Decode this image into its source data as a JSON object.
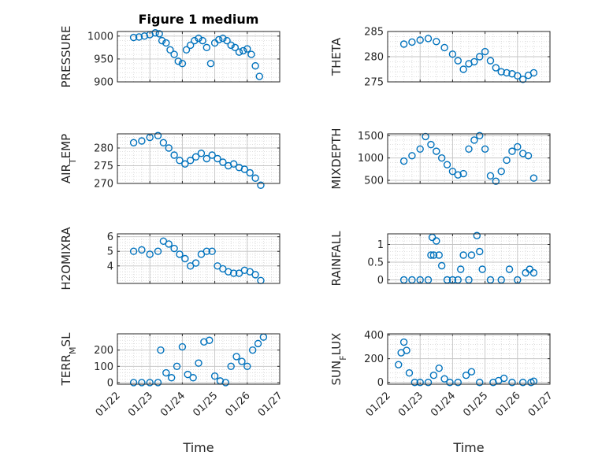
{
  "figure": {
    "title": "Figure 1 medium",
    "xlabel": "Time",
    "date_tick_labels": [
      "01/22",
      "01/23",
      "01/24",
      "01/25",
      "01/26",
      "01/27"
    ],
    "marker_color": "#0072BD"
  },
  "chart_data": [
    {
      "type": "scatter",
      "ylabel": "PRESSURE",
      "ylim": [
        900,
        1010
      ],
      "yticks": [
        900,
        950,
        1000
      ],
      "xlim": [
        "01/22",
        "01/27"
      ],
      "grid": true,
      "x": [
        "01/22 12:00",
        "01/22 16:00",
        "01/22 20:00",
        "01/23 00:00",
        "01/23 04:00",
        "01/23 07:00",
        "01/23 09:00",
        "01/23 12:00",
        "01/23 15:00",
        "01/23 18:00",
        "01/23 21:00",
        "01/24 00:00",
        "01/24 03:00",
        "01/24 06:00",
        "01/24 09:00",
        "01/24 12:00",
        "01/24 15:00",
        "01/24 18:00",
        "01/24 21:00",
        "01/25 00:00",
        "01/25 03:00",
        "01/25 06:00",
        "01/25 09:00",
        "01/25 12:00",
        "01/25 15:00",
        "01/25 18:00",
        "01/25 21:00",
        "01/26 00:00",
        "01/26 03:00",
        "01/26 06:00",
        "01/26 09:00"
      ],
      "values": [
        997,
        998,
        1000,
        1003,
        1007,
        1005,
        990,
        985,
        970,
        960,
        945,
        940,
        970,
        980,
        990,
        995,
        990,
        975,
        940,
        985,
        992,
        995,
        990,
        980,
        975,
        965,
        968,
        972,
        960,
        935,
        912
      ]
    },
    {
      "type": "scatter",
      "ylabel": "THETA",
      "ylim": [
        275,
        285
      ],
      "yticks": [
        275,
        280,
        285
      ],
      "xlim": [
        "01/22",
        "01/27"
      ],
      "grid": true,
      "x": [
        "01/22 12:00",
        "01/22 18:00",
        "01/23 00:00",
        "01/23 06:00",
        "01/23 12:00",
        "01/23 18:00",
        "01/24 00:00",
        "01/24 04:00",
        "01/24 08:00",
        "01/24 12:00",
        "01/24 16:00",
        "01/24 20:00",
        "01/25 00:00",
        "01/25 04:00",
        "01/25 08:00",
        "01/25 12:00",
        "01/25 16:00",
        "01/25 20:00",
        "01/26 00:00",
        "01/26 04:00",
        "01/26 08:00",
        "01/26 12:00"
      ],
      "values": [
        282.5,
        282.9,
        283.3,
        283.6,
        283.0,
        281.8,
        280.5,
        279.2,
        277.5,
        278.6,
        279.0,
        280.0,
        281.0,
        279.2,
        277.8,
        277.0,
        276.8,
        276.6,
        276.2,
        275.5,
        276.3,
        276.8
      ]
    },
    {
      "type": "scatter",
      "ylabel": "AIR_TEMP",
      "ylim": [
        270,
        284
      ],
      "yticks": [
        270,
        275,
        280
      ],
      "xlim": [
        "01/22",
        "01/27"
      ],
      "grid": true,
      "x": [
        "01/22 12:00",
        "01/22 18:00",
        "01/23 00:00",
        "01/23 06:00",
        "01/23 10:00",
        "01/23 14:00",
        "01/23 18:00",
        "01/23 22:00",
        "01/24 02:00",
        "01/24 06:00",
        "01/24 10:00",
        "01/24 14:00",
        "01/24 18:00",
        "01/24 22:00",
        "01/25 02:00",
        "01/25 06:00",
        "01/25 10:00",
        "01/25 14:00",
        "01/25 18:00",
        "01/25 22:00",
        "01/26 02:00",
        "01/26 06:00",
        "01/26 10:00"
      ],
      "values": [
        281.5,
        282.0,
        283.0,
        283.5,
        281.5,
        280.0,
        278.0,
        276.5,
        275.5,
        276.5,
        277.5,
        278.5,
        277.0,
        278.0,
        277.0,
        276.0,
        275.0,
        275.5,
        274.5,
        274.0,
        273.0,
        271.5,
        269.5
      ]
    },
    {
      "type": "scatter",
      "ylabel": "MIXDEPTH",
      "ylim": [
        430,
        1540
      ],
      "yticks": [
        500,
        1000,
        1500
      ],
      "xlim": [
        "01/22",
        "01/27"
      ],
      "grid": true,
      "x": [
        "01/22 12:00",
        "01/22 18:00",
        "01/23 00:00",
        "01/23 04:00",
        "01/23 08:00",
        "01/23 12:00",
        "01/23 16:00",
        "01/23 20:00",
        "01/24 00:00",
        "01/24 04:00",
        "01/24 08:00",
        "01/24 12:00",
        "01/24 16:00",
        "01/24 20:00",
        "01/25 00:00",
        "01/25 04:00",
        "01/25 08:00",
        "01/25 12:00",
        "01/25 16:00",
        "01/25 20:00",
        "01/26 00:00",
        "01/26 04:00",
        "01/26 08:00",
        "01/26 12:00"
      ],
      "values": [
        930,
        1050,
        1200,
        1480,
        1300,
        1150,
        1000,
        850,
        700,
        620,
        650,
        1200,
        1400,
        1500,
        1200,
        600,
        480,
        700,
        950,
        1150,
        1250,
        1100,
        1050,
        550
      ]
    },
    {
      "type": "scatter",
      "ylabel": "H2OMIXRA",
      "ylim": [
        2.8,
        6.2
      ],
      "yticks": [
        4,
        5,
        6
      ],
      "xlim": [
        "01/22",
        "01/27"
      ],
      "grid": true,
      "x": [
        "01/22 12:00",
        "01/22 18:00",
        "01/23 00:00",
        "01/23 06:00",
        "01/23 10:00",
        "01/23 14:00",
        "01/23 18:00",
        "01/23 22:00",
        "01/24 02:00",
        "01/24 06:00",
        "01/24 10:00",
        "01/24 14:00",
        "01/24 18:00",
        "01/24 22:00",
        "01/25 02:00",
        "01/25 06:00",
        "01/25 10:00",
        "01/25 14:00",
        "01/25 18:00",
        "01/25 22:00",
        "01/26 02:00",
        "01/26 06:00",
        "01/26 10:00"
      ],
      "values": [
        5.0,
        5.1,
        4.8,
        5.0,
        5.7,
        5.5,
        5.2,
        4.8,
        4.5,
        4.0,
        4.2,
        4.8,
        5.0,
        5.0,
        4.0,
        3.8,
        3.6,
        3.5,
        3.5,
        3.7,
        3.6,
        3.4,
        3.0
      ]
    },
    {
      "type": "scatter",
      "ylabel": "RAINFALL",
      "ylim": [
        -0.1,
        1.3
      ],
      "yticks": [
        0,
        0.5,
        1
      ],
      "xlim": [
        "01/22",
        "01/27"
      ],
      "grid": true,
      "x": [
        "01/22 12:00",
        "01/22 18:00",
        "01/23 00:00",
        "01/23 06:00",
        "01/23 08:00",
        "01/23 09:00",
        "01/23 10:00",
        "01/23 12:00",
        "01/23 14:00",
        "01/23 16:00",
        "01/23 20:00",
        "01/24 00:00",
        "01/24 04:00",
        "01/24 06:00",
        "01/24 08:00",
        "01/24 12:00",
        "01/24 14:00",
        "01/24 18:00",
        "01/24 20:00",
        "01/24 22:00",
        "01/25 04:00",
        "01/25 12:00",
        "01/25 18:00",
        "01/26 00:00",
        "01/26 06:00",
        "01/26 09:00",
        "01/26 12:00"
      ],
      "values": [
        0,
        0,
        0,
        0,
        0.7,
        1.2,
        0.7,
        1.1,
        0.7,
        0.4,
        0,
        0,
        0,
        0.3,
        0.7,
        0,
        0.7,
        1.25,
        0.8,
        0.3,
        0,
        0,
        0.3,
        0,
        0.2,
        0.3,
        0.2
      ]
    },
    {
      "type": "scatter",
      "ylabel": "TERR_MSL",
      "ylim": [
        -10,
        300
      ],
      "yticks": [
        0,
        100,
        200
      ],
      "xlim": [
        "01/22",
        "01/27"
      ],
      "grid": true,
      "x": [
        "01/22 12:00",
        "01/22 18:00",
        "01/23 00:00",
        "01/23 06:00",
        "01/23 08:00",
        "01/23 12:00",
        "01/23 16:00",
        "01/23 20:00",
        "01/24 00:00",
        "01/24 04:00",
        "01/24 08:00",
        "01/24 12:00",
        "01/24 16:00",
        "01/24 20:00",
        "01/25 00:00",
        "01/25 04:00",
        "01/25 08:00",
        "01/25 12:00",
        "01/25 16:00",
        "01/25 20:00",
        "01/26 00:00",
        "01/26 04:00",
        "01/26 08:00",
        "01/26 12:00"
      ],
      "values": [
        0,
        0,
        0,
        0,
        200,
        60,
        30,
        100,
        220,
        50,
        30,
        120,
        250,
        260,
        40,
        10,
        0,
        100,
        160,
        130,
        100,
        200,
        240,
        280
      ]
    },
    {
      "type": "scatter",
      "ylabel": "SUN_FLUX",
      "ylim": [
        -15,
        410
      ],
      "yticks": [
        0,
        200,
        400
      ],
      "xlim": [
        "01/22",
        "01/27"
      ],
      "grid": true,
      "x": [
        "01/22 08:00",
        "01/22 10:00",
        "01/22 12:00",
        "01/22 14:00",
        "01/22 16:00",
        "01/22 20:00",
        "01/23 00:00",
        "01/23 06:00",
        "01/23 10:00",
        "01/23 14:00",
        "01/23 18:00",
        "01/23 22:00",
        "01/24 04:00",
        "01/24 10:00",
        "01/24 14:00",
        "01/24 20:00",
        "01/25 06:00",
        "01/25 10:00",
        "01/25 14:00",
        "01/25 20:00",
        "01/26 04:00",
        "01/26 10:00",
        "01/26 12:00"
      ],
      "values": [
        150,
        250,
        340,
        270,
        80,
        0,
        0,
        0,
        60,
        120,
        30,
        0,
        0,
        60,
        90,
        0,
        0,
        15,
        35,
        0,
        0,
        0,
        10
      ]
    }
  ]
}
